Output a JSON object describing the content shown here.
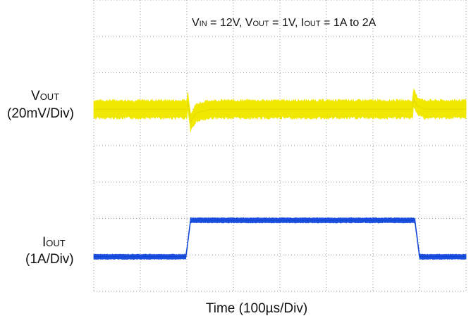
{
  "chart_data": {
    "type": "line",
    "xlabel": "Time (100µs/Div)",
    "x_scale": "100µs/Div",
    "grid": true,
    "divisions": {
      "x": 8,
      "y": 8
    },
    "annotation": {
      "parts": [
        "V",
        "IN",
        " = 12V, V",
        "OUT",
        " = 1V, I",
        "OUT",
        " = 1A to 2A"
      ]
    },
    "series": [
      {
        "name": "VOUT",
        "label_main": "V",
        "label_sub": "OUT",
        "scale": "(20mV/Div)",
        "color": "#f0e800",
        "points": [
          [
            0,
            0
          ],
          [
            2.0,
            0
          ],
          [
            2.02,
            0.25
          ],
          [
            2.08,
            -0.35
          ],
          [
            2.2,
            -0.1
          ],
          [
            2.5,
            0
          ],
          [
            6.85,
            0
          ],
          [
            6.87,
            0.3
          ],
          [
            6.95,
            0.1
          ],
          [
            7.1,
            0
          ],
          [
            8.0,
            0
          ]
        ],
        "baseline_div": 5.0,
        "noise_band_div": 0.55
      },
      {
        "name": "IOUT",
        "label_main": "I",
        "label_sub": "OUT",
        "scale": "(1A/Div)",
        "color": "#1a4fe0",
        "points": [
          [
            0,
            1
          ],
          [
            1.98,
            1
          ],
          [
            2.08,
            2
          ],
          [
            6.9,
            2
          ],
          [
            7.0,
            1
          ],
          [
            8.0,
            1
          ]
        ],
        "baseline_div": 0.95,
        "noise_band_div": 0.15
      }
    ]
  }
}
